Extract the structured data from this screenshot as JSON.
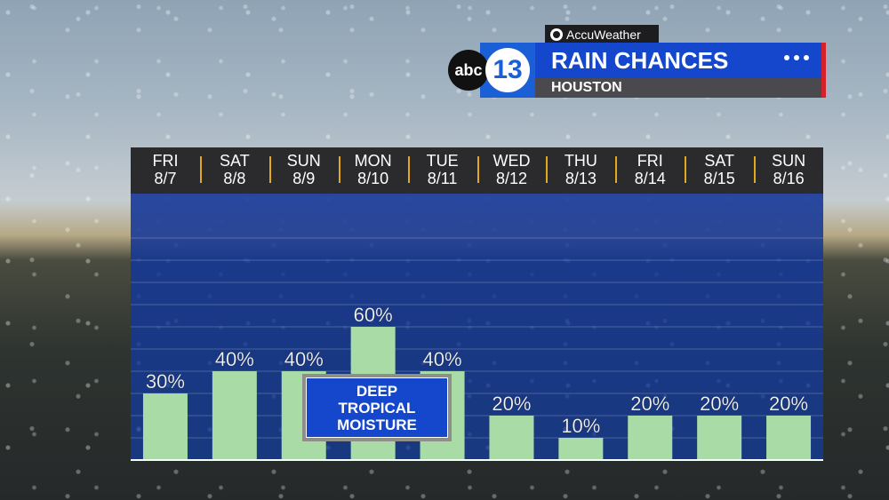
{
  "header": {
    "accuweather_label": "AccuWeather",
    "logo_abc": "abc",
    "logo_number": "13",
    "title": "RAIN CHANCES",
    "location": "HOUSTON"
  },
  "days": [
    {
      "day": "FRI",
      "date": "8/7"
    },
    {
      "day": "SAT",
      "date": "8/8"
    },
    {
      "day": "SUN",
      "date": "8/9"
    },
    {
      "day": "MON",
      "date": "8/10"
    },
    {
      "day": "TUE",
      "date": "8/11"
    },
    {
      "day": "WED",
      "date": "8/12"
    },
    {
      "day": "THU",
      "date": "8/13"
    },
    {
      "day": "FRI",
      "date": "8/14"
    },
    {
      "day": "SAT",
      "date": "8/15"
    },
    {
      "day": "SUN",
      "date": "8/16"
    }
  ],
  "annotation": {
    "line1": "DEEP",
    "line2": "TROPICAL",
    "line3": "MOISTURE"
  },
  "colors": {
    "bar": "#a8dba5",
    "panel": "#1447cc",
    "divider": "#e5a91d"
  },
  "chart_data": {
    "type": "bar",
    "title": "RAIN CHANCES",
    "categories": [
      "FRI 8/7",
      "SAT 8/8",
      "SUN 8/9",
      "MON 8/10",
      "TUE 8/11",
      "WED 8/12",
      "THU 8/13",
      "FRI 8/14",
      "SAT 8/15",
      "SUN 8/16"
    ],
    "values": [
      30,
      40,
      40,
      60,
      40,
      20,
      10,
      20,
      20,
      20
    ],
    "labels": [
      "30%",
      "40%",
      "40%",
      "60%",
      "40%",
      "20%",
      "10%",
      "20%",
      "20%",
      "20%"
    ],
    "ylim": [
      0,
      100
    ],
    "grid": true
  }
}
